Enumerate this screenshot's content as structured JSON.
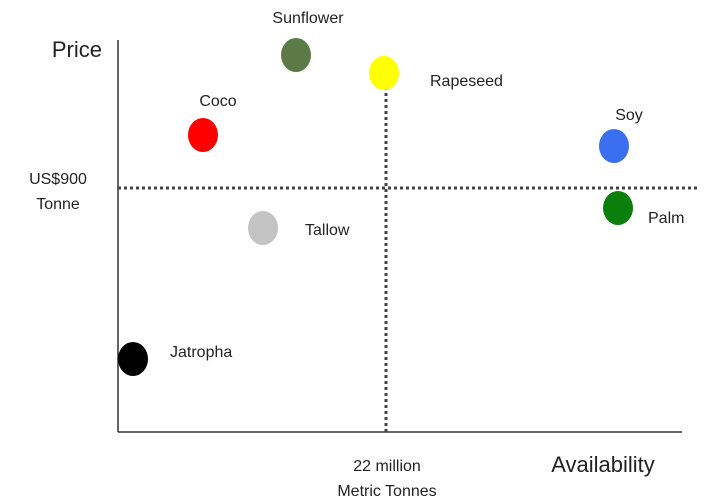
{
  "axes": {
    "y_label": "Price",
    "x_label": "Availability"
  },
  "reference_lines": {
    "horizontal": {
      "label": [
        "US$900",
        "Tonne"
      ]
    },
    "vertical": {
      "label": [
        "22 million",
        "Metric Tonnes"
      ]
    }
  },
  "nodes": [
    {
      "label": "Sunflower",
      "color": "#5b7a45"
    },
    {
      "label": "Rapeseed",
      "color": "#ffff00"
    },
    {
      "label": "Coco",
      "color": "#ff0000"
    },
    {
      "label": "Soy",
      "color": "#3a6ff0"
    },
    {
      "label": "Palm",
      "color": "#0b7f0b"
    },
    {
      "label": "Tallow",
      "color": "#c3c3c3"
    },
    {
      "label": "Jatropha",
      "color": "#000000"
    }
  ]
}
